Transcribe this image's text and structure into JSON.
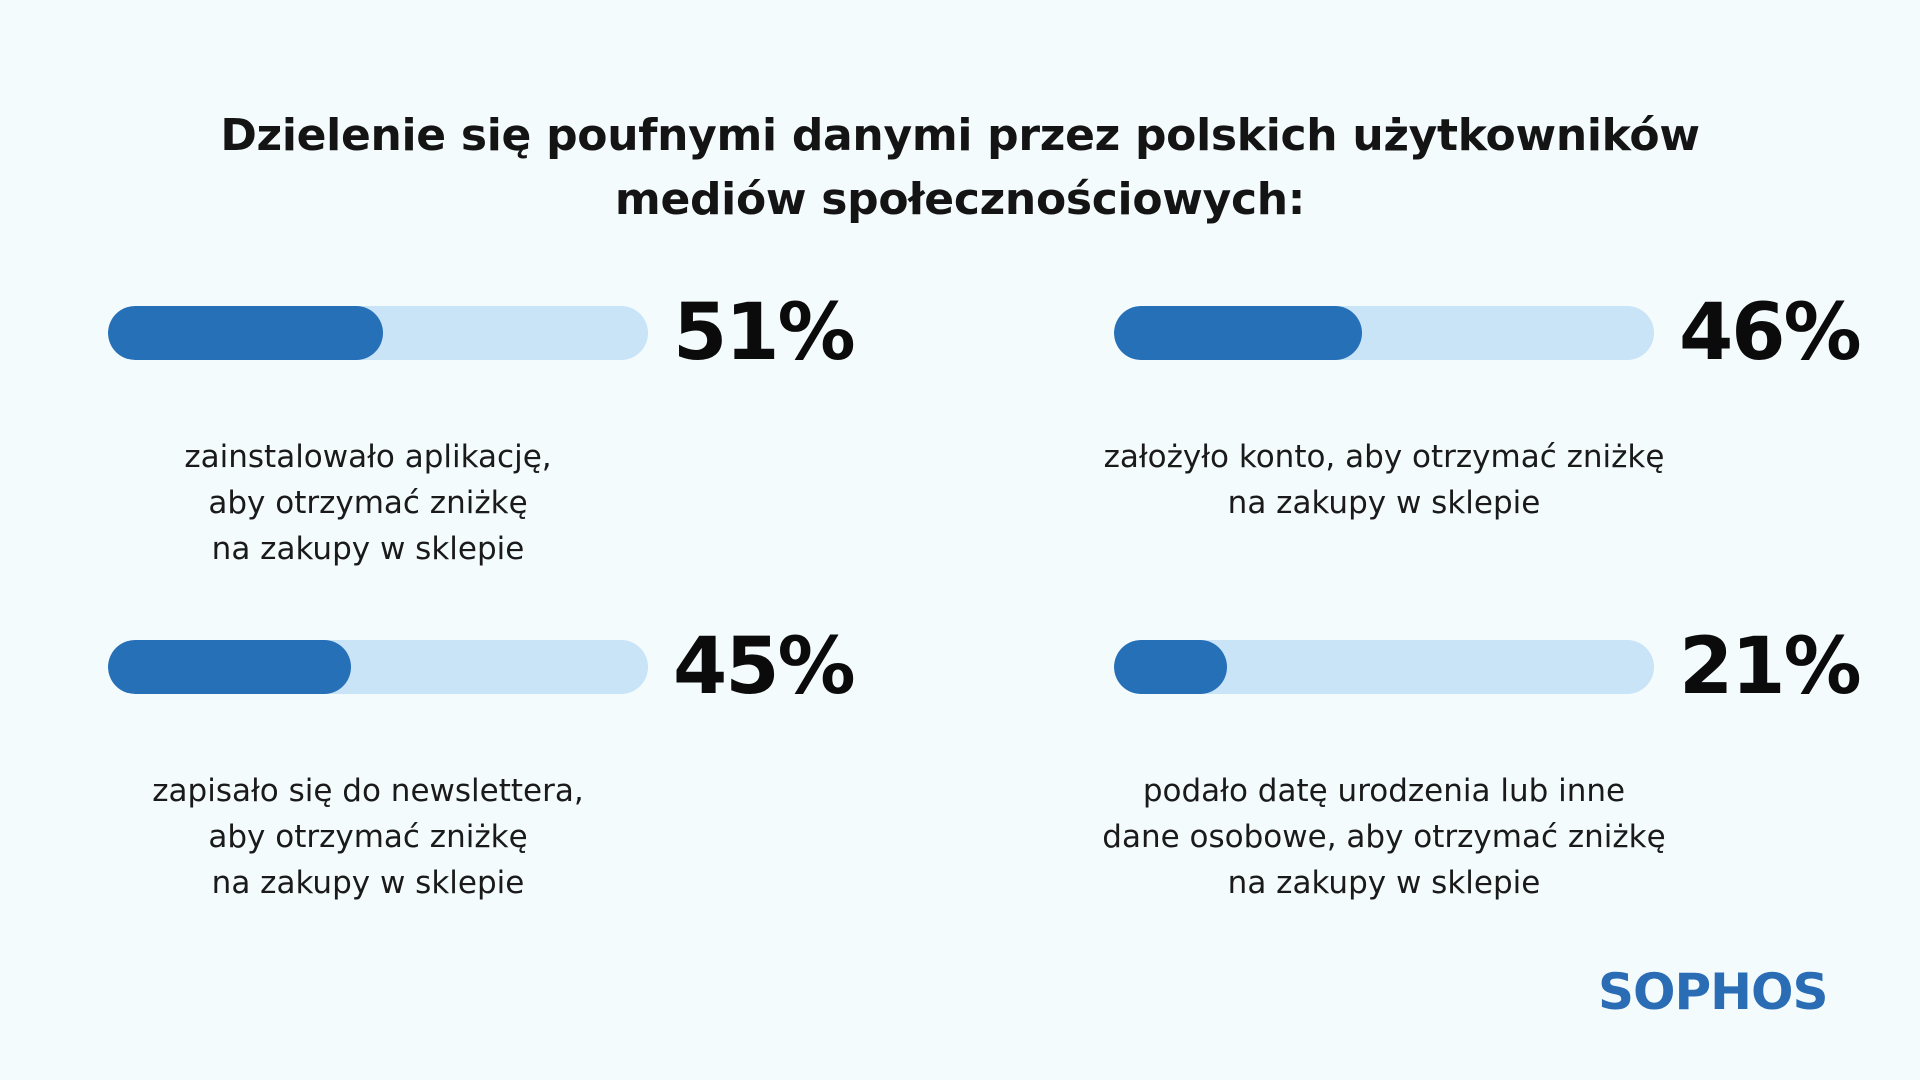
{
  "title": {
    "line1": "Dzielenie się poufnymi danymi przez polskich użytkowników",
    "line2": "mediów społecznościowych:"
  },
  "stats": [
    {
      "percent_label": "51%",
      "value": 51,
      "desc": [
        "zainstalowało aplikację,",
        "aby otrzymać zniżkę",
        "na zakupy w sklepie"
      ]
    },
    {
      "percent_label": "46%",
      "value": 46,
      "desc": [
        "założyło konto, aby otrzymać zniżkę",
        "na zakupy w sklepie"
      ]
    },
    {
      "percent_label": "45%",
      "value": 45,
      "desc": [
        "zapisało się do newslettera,",
        "aby otrzymać zniżkę",
        "na zakupy w sklepie"
      ]
    },
    {
      "percent_label": "21%",
      "value": 21,
      "desc": [
        "podało datę urodzenia lub inne",
        "dane osobowe, aby otrzymać zniżkę",
        "na zakupy w sklepie"
      ]
    }
  ],
  "chart_data": {
    "type": "bar",
    "title": "Dzielenie się poufnymi danymi przez polskich użytkowników mediów społecznościowych:",
    "categories": [
      "zainstalowało aplikację, aby otrzymać zniżkę na zakupy w sklepie",
      "założyło konto, aby otrzymać zniżkę na zakupy w sklepie",
      "zapisało się do newslettera, aby otrzymać zniżkę na zakupy w sklepie",
      "podało datę urodzenia lub inne dane osobowe, aby otrzymać zniżkę na zakupy w sklepie"
    ],
    "values": [
      51,
      46,
      45,
      21
    ],
    "ylim": [
      0,
      100
    ],
    "xlabel": "",
    "ylabel": ""
  },
  "colors": {
    "bar_fill": "#2670b8",
    "bar_track": "#c9e3f7",
    "background": "#f4fbfd",
    "logo": "#2a6db5"
  },
  "logo": {
    "text": "SOPHOS"
  }
}
